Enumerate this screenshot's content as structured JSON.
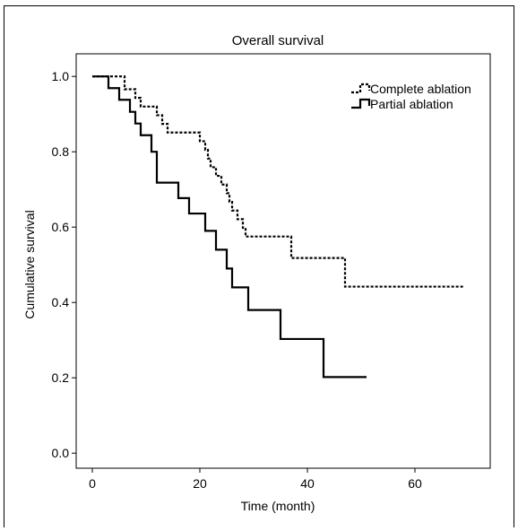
{
  "chart_data": {
    "type": "line",
    "subtype": "kaplan-meier step",
    "title": "Overall survival",
    "xlabel": "Time (month)",
    "ylabel": "Cumulative survival",
    "xlim": [
      -3,
      74
    ],
    "ylim": [
      -0.04,
      1.06
    ],
    "xticks": [
      0,
      20,
      40,
      60
    ],
    "xtick_labels": [
      "0",
      "20",
      "40",
      "60"
    ],
    "yticks": [
      0.0,
      0.2,
      0.4,
      0.6,
      0.8,
      1.0
    ],
    "ytick_labels": [
      "0.0",
      "0.2",
      "0.4",
      "0.6",
      "0.8",
      "1.0"
    ],
    "legend_position": "top-right",
    "grid": false,
    "series": [
      {
        "name": "Complete ablation",
        "line_style": "dotted",
        "color": "#000000",
        "steps": [
          [
            0,
            1.0
          ],
          [
            6,
            0.966
          ],
          [
            8,
            0.943
          ],
          [
            9,
            0.92
          ],
          [
            12,
            0.897
          ],
          [
            13,
            0.874
          ],
          [
            14,
            0.851
          ],
          [
            20,
            0.828
          ],
          [
            21,
            0.805
          ],
          [
            21.5,
            0.782
          ],
          [
            22,
            0.759
          ],
          [
            23,
            0.736
          ],
          [
            24,
            0.713
          ],
          [
            25,
            0.69
          ],
          [
            25.5,
            0.667
          ],
          [
            26,
            0.644
          ],
          [
            27,
            0.621
          ],
          [
            28,
            0.598
          ],
          [
            28.5,
            0.575
          ],
          [
            37,
            0.518
          ],
          [
            47,
            0.442
          ],
          [
            69,
            0.442
          ]
        ]
      },
      {
        "name": "Partial ablation",
        "line_style": "solid",
        "color": "#000000",
        "steps": [
          [
            0,
            1.0
          ],
          [
            3,
            0.969
          ],
          [
            5,
            0.938
          ],
          [
            7,
            0.906
          ],
          [
            8,
            0.875
          ],
          [
            9,
            0.844
          ],
          [
            11,
            0.8
          ],
          [
            12,
            0.718
          ],
          [
            16,
            0.677
          ],
          [
            18,
            0.636
          ],
          [
            21,
            0.59
          ],
          [
            23,
            0.54
          ],
          [
            25,
            0.49
          ],
          [
            26,
            0.44
          ],
          [
            29,
            0.38
          ],
          [
            35,
            0.303
          ],
          [
            43,
            0.202
          ],
          [
            51,
            0.202
          ]
        ]
      }
    ]
  }
}
